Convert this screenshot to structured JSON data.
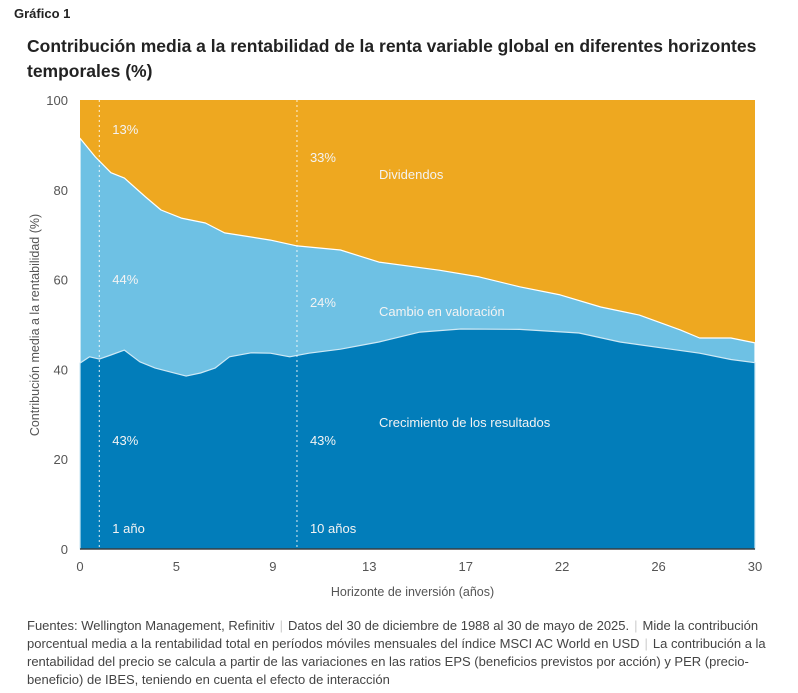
{
  "figure_label": "Gráfico 1",
  "chart_data": {
    "type": "area",
    "stacked": true,
    "title": "Contribución media a la rentabilidad de la renta variable global en diferentes horizontes temporales (%)",
    "xlabel": "Horizonte de inversión (años)",
    "ylabel": "Contribución media a la rentabilidad (%)",
    "xlim": [
      0,
      30
    ],
    "ylim": [
      0,
      100
    ],
    "x_ticks": [
      "0",
      "5",
      "9",
      "13",
      "17",
      "22",
      "26",
      "30"
    ],
    "y_ticks": [
      "0",
      "20",
      "40",
      "60",
      "80",
      "100"
    ],
    "grid": false,
    "colors": {
      "dividendos": "#EEA820",
      "valoracion": "#6EC1E4",
      "crecimiento": "#027DBA"
    },
    "series": [
      {
        "name": "Crecimiento de los resultados",
        "note": "cumulative upper boundary",
        "x": [
          0,
          0.5,
          1.0,
          1.6,
          2.3,
          3.1,
          3.9,
          4.7,
          5.4,
          6.0,
          6.6,
          7.2,
          8.1,
          8.9,
          9.7,
          10.5,
          11.8,
          13.4,
          15.1,
          16.8,
          19.8,
          22.7,
          24.4,
          26.1,
          27.7,
          29.0,
          30
        ],
        "y": [
          41.4,
          42.8,
          42.3,
          43.2,
          44.3,
          41.7,
          40.3,
          39.4,
          38.5,
          39.2,
          40.3,
          42.8,
          43.7,
          43.6,
          42.8,
          43.6,
          44.5,
          46.1,
          48.3,
          49.0,
          48.9,
          48.1,
          46.1,
          44.8,
          43.6,
          42.2,
          41.5
        ]
      },
      {
        "name": "Cambio en valoración",
        "note": "cumulative upper boundary",
        "x": [
          0,
          0.8,
          1.6,
          2.3,
          3.4,
          4.2,
          5.2,
          6.2,
          7.0,
          7.6,
          8.9,
          10.0,
          11.8,
          13.4,
          15.9,
          17.7,
          19.8,
          21.9,
          23.6,
          25.2,
          26.9,
          27.7,
          29.0,
          30
        ],
        "y": [
          91.5,
          87.3,
          83.8,
          82.6,
          78.4,
          75.5,
          73.7,
          72.6,
          70.4,
          69.9,
          68.8,
          67.5,
          66.6,
          63.9,
          62.1,
          60.6,
          58.4,
          56.6,
          53.9,
          52.1,
          48.8,
          47.0,
          47.0,
          45.9
        ]
      },
      {
        "name": "Dividendos",
        "note": "fills to 100"
      }
    ],
    "markers": [
      {
        "x": 1,
        "label": "1 año",
        "values": {
          "Dividendos": "13%",
          "Cambio en valoración": "44%",
          "Crecimiento de los resultados": "43%"
        }
      },
      {
        "x": 10,
        "label": "10 años",
        "values": {
          "Dividendos": "33%",
          "Cambio en valoración": "24%",
          "Crecimiento de los resultados": "43%"
        }
      }
    ]
  },
  "footer": [
    "Fuentes: Wellington Management, Refinitiv",
    "Datos del 30 de diciembre de 1988 al 30 de mayo de 2025.",
    "Mide la contribución porcentual media a la rentabilidad total en períodos móviles mensuales del índice MSCI AC World en USD",
    "La contribución a la rentabilidad del precio se calcula a partir de las variaciones en las ratios EPS (beneficios previstos por acción) y PER (precio-beneficio) de IBES, teniendo en cuenta el efecto de interacción"
  ]
}
